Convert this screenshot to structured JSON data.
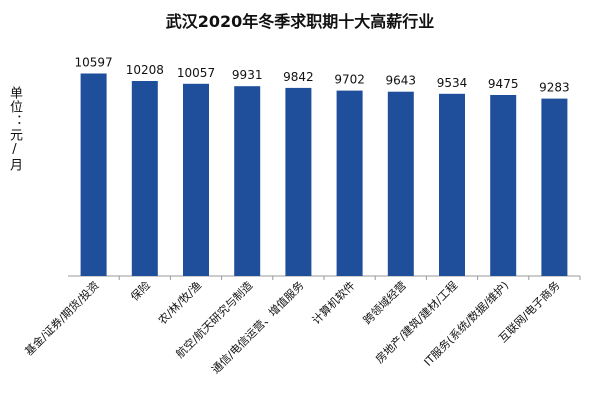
{
  "chart_data": {
    "type": "bar",
    "title": "武汉2020年冬季求职期十大高薪行业",
    "ylabel": "单位：元/月",
    "xlabel": "",
    "categories": [
      "基金/证券/期货/投资",
      "保险",
      "农/林/牧/渔",
      "航空/航天研究与制造",
      "通信/电信运营、增值服务",
      "计算机软件",
      "跨领域经营",
      "房地产/建筑/建材/工程",
      "IT服务(系统/数据/维护)",
      "互联网/电子商务"
    ],
    "values": [
      10597,
      10208,
      10057,
      9931,
      9842,
      9702,
      9643,
      9534,
      9475,
      9283
    ],
    "ylim": [
      0,
      11200
    ],
    "grid": false,
    "legend": "none",
    "bar_color": "#1f4e9a",
    "axis_color": "#999999"
  }
}
